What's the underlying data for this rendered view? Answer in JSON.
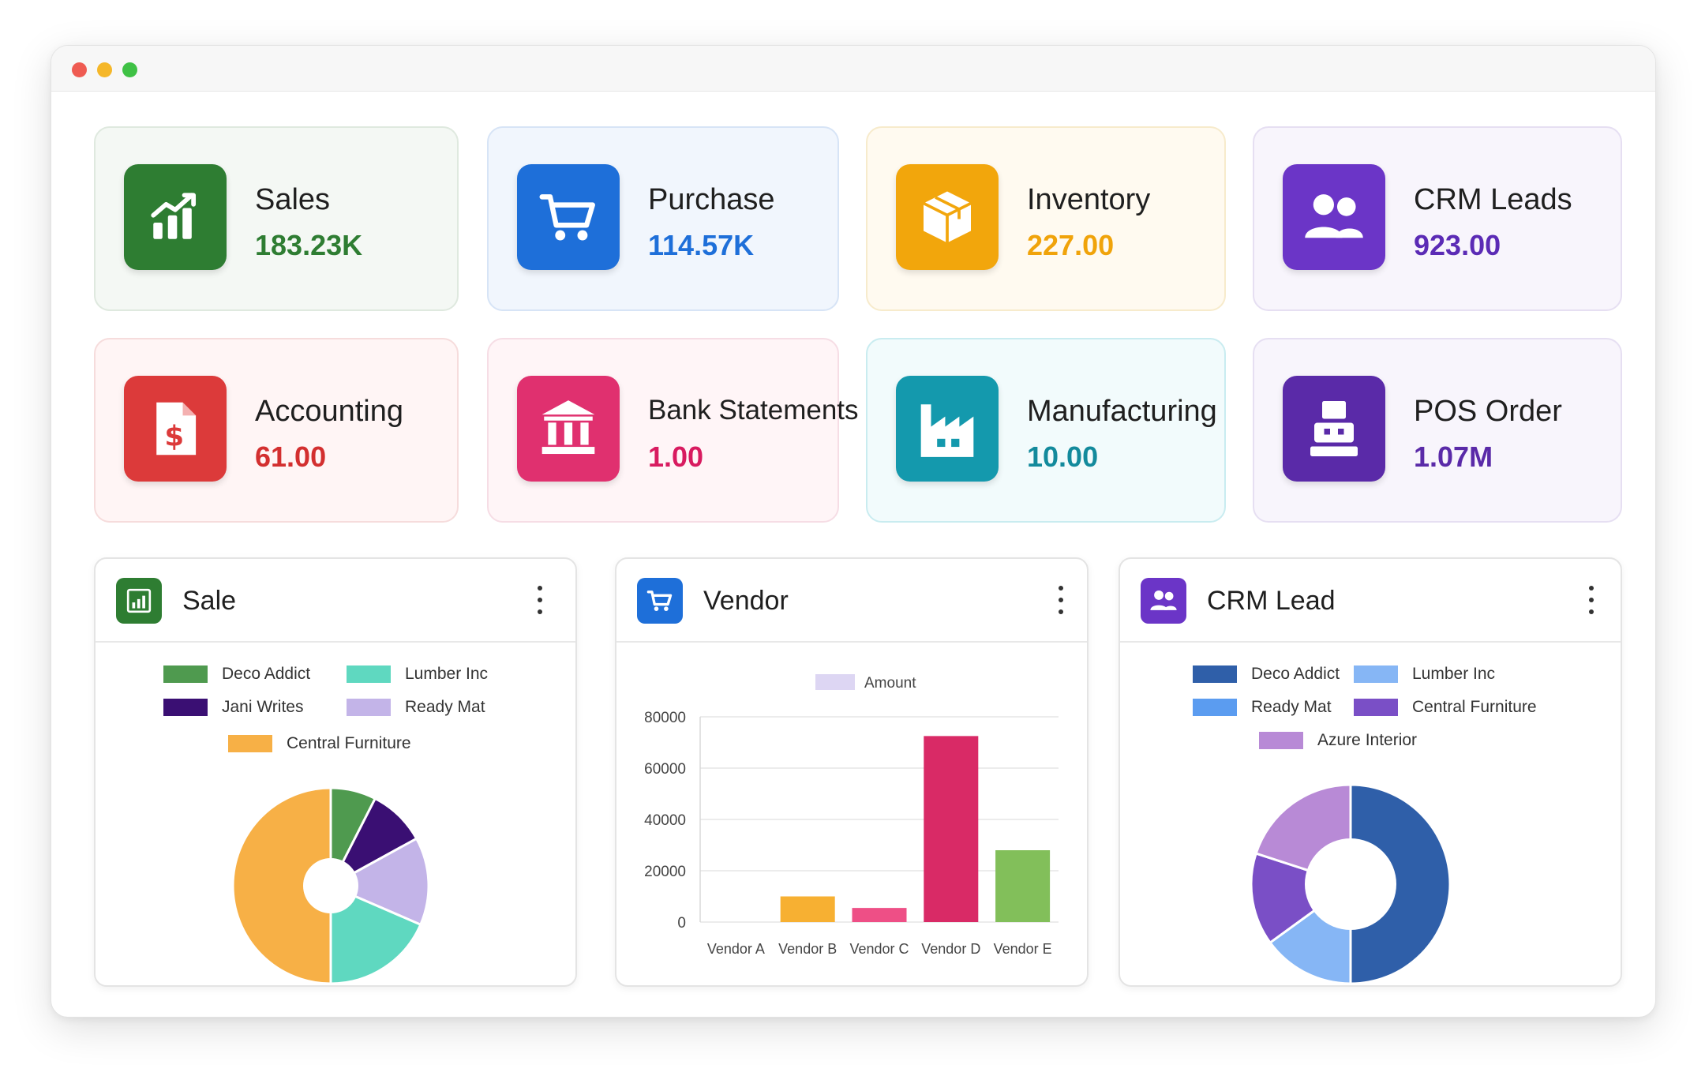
{
  "window": {
    "controls": [
      "close",
      "minimize",
      "maximize"
    ]
  },
  "cards": [
    {
      "key": "sales",
      "label": "Sales",
      "value": "183.23K",
      "icon": "bar-chart-icon",
      "icon_color": "#2e7d32",
      "value_color": "#2e7d32",
      "bg": "#f4f8f4",
      "border": "#dfe9df"
    },
    {
      "key": "purchase",
      "label": "Purchase",
      "value": "114.57K",
      "icon": "cart-icon",
      "icon_color": "#1e6fd9",
      "value_color": "#1e6fd9",
      "bg": "#f1f6fd",
      "border": "#d7e4f6"
    },
    {
      "key": "inventory",
      "label": "Inventory",
      "value": "227.00",
      "icon": "box-icon",
      "icon_color": "#f2a60c",
      "value_color": "#f0a30a",
      "bg": "#fffaf0",
      "border": "#f7ebcc"
    },
    {
      "key": "crm-leads",
      "label": "CRM Leads",
      "value": "923.00",
      "icon": "users-icon",
      "icon_color": "#6b35c7",
      "value_color": "#5b2bb5",
      "bg": "#f8f5fc",
      "border": "#e6dff2"
    },
    {
      "key": "accounting",
      "label": "Accounting",
      "value": "61.00",
      "icon": "invoice-dollar-icon",
      "icon_color": "#dc3a3a",
      "value_color": "#d32f2f",
      "bg": "#fff5f5",
      "border": "#f6dcdc"
    },
    {
      "key": "bank-statements",
      "label": "Bank Statements",
      "value": "1.00",
      "icon": "bank-icon",
      "icon_color": "#e0306f",
      "value_color": "#d81b60",
      "bg": "#fff5f7",
      "border": "#f6dde5"
    },
    {
      "key": "manufacturing",
      "label": "Manufacturing",
      "value": "10.00",
      "icon": "factory-icon",
      "icon_color": "#1499ad",
      "value_color": "#138a9c",
      "bg": "#f2fbfc",
      "border": "#c9ecf0"
    },
    {
      "key": "pos-order",
      "label": "POS Order",
      "value": "1.07M",
      "icon": "pos-terminal-icon",
      "icon_color": "#5a2aa8",
      "value_color": "#5a2aa8",
      "bg": "#f8f5fc",
      "border": "#e6dff2"
    }
  ],
  "panels": {
    "sale": {
      "title": "Sale",
      "icon": "bar-chart-icon",
      "icon_color": "#2e7d32",
      "chart_data": {
        "type": "pie",
        "legend": "top",
        "series": [
          {
            "name": "Deco Addict",
            "value": 7.5,
            "color": "#4f9a4f"
          },
          {
            "name": "Jani Writes",
            "value": 9.5,
            "color": "#3a0f73"
          },
          {
            "name": "Ready Mat",
            "value": 14.5,
            "color": "#c3b4e8"
          },
          {
            "name": "Lumber Inc",
            "value": 18.5,
            "color": "#5fd8c0"
          },
          {
            "name": "Central Furniture",
            "value": 50,
            "color": "#f7b046"
          }
        ]
      }
    },
    "vendor": {
      "title": "Vendor",
      "icon": "cart-icon",
      "icon_color": "#1e6fd9",
      "chart_data": {
        "type": "bar",
        "categories": [
          "Vendor A",
          "Vendor B",
          "Vendor C",
          "Vendor D",
          "Vendor E"
        ],
        "series": [
          {
            "name": "Amount",
            "values": [
              0,
              10000,
              5500,
              72500,
              28000
            ],
            "colors": [
              "#cccccc",
              "#f7b032",
              "#ee4f86",
              "#d92a66",
              "#82bf5a"
            ]
          }
        ],
        "legend_color": "#ddd6f3",
        "ylim": [
          0,
          80000
        ],
        "yticks": [
          "80000",
          "60000",
          "40000",
          "20000",
          "0"
        ],
        "grid": true
      }
    },
    "crm_lead": {
      "title": "CRM Lead",
      "icon": "users-icon",
      "icon_color": "#6b35c7",
      "chart_data": {
        "type": "pie",
        "legend": "top",
        "series": [
          {
            "name": "Deco Addict",
            "value": 50,
            "color": "#2f5fa9"
          },
          {
            "name": "Lumber Inc",
            "value": 15,
            "color": "#86b6f5"
          },
          {
            "name": "Ready Mat",
            "value": 0,
            "color": "#5b9cf0"
          },
          {
            "name": "Central Furniture",
            "value": 15,
            "color": "#7a4fc6"
          },
          {
            "name": "Azure Interior",
            "value": 20,
            "color": "#b88ad6"
          }
        ]
      }
    }
  }
}
